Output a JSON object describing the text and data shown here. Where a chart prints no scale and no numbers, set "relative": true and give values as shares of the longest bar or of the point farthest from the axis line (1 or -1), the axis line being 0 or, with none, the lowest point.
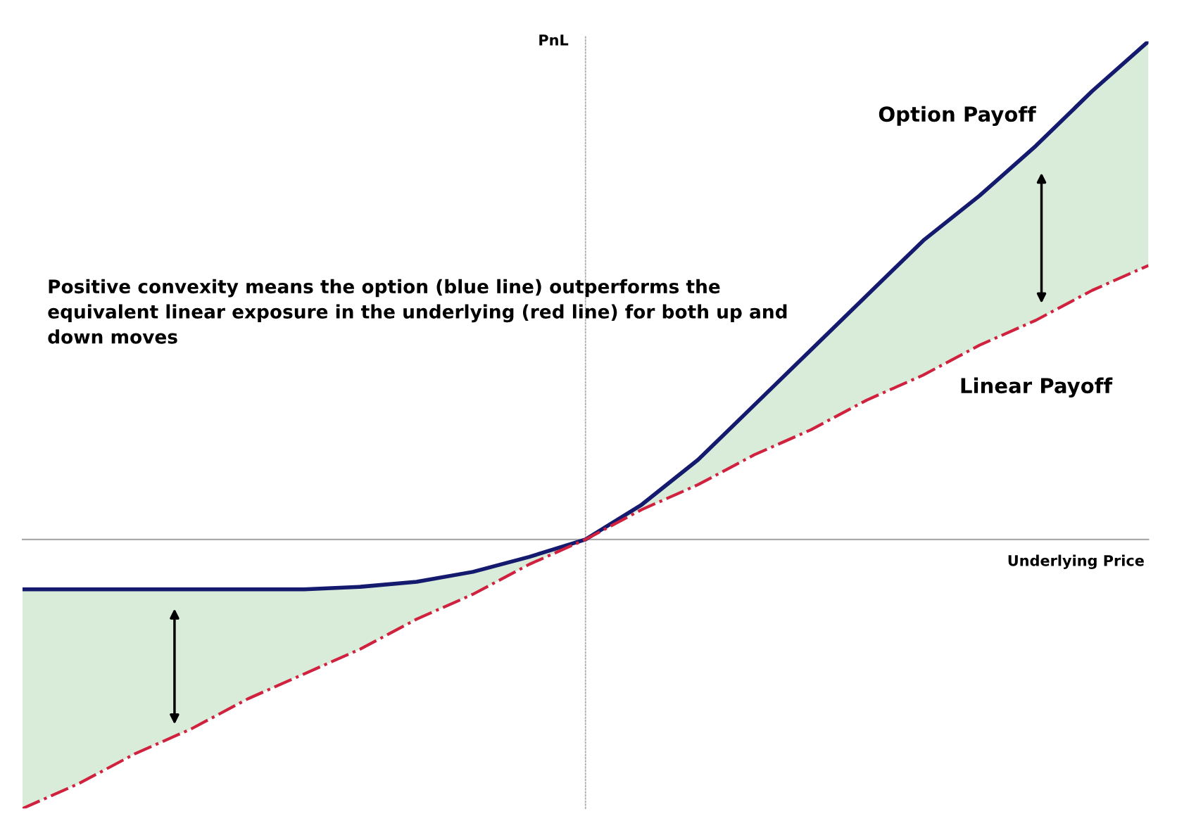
{
  "chart_data": {
    "type": "line",
    "relative": true,
    "xlabel": "Underlying Price",
    "ylabel": "PnL",
    "categories": [
      null,
      null,
      null,
      null,
      null,
      null,
      null,
      null,
      null,
      null,
      null,
      null,
      null,
      null,
      null,
      null,
      null,
      null,
      null,
      null,
      null
    ],
    "series": [
      {
        "name": "Option Payoff",
        "color": "#141a6e",
        "line_style": "solid",
        "values": [
          -0.1,
          -0.1,
          -0.1,
          -0.1,
          -0.1,
          -0.1,
          -0.095,
          -0.085,
          -0.065,
          -0.035,
          0,
          0.07,
          0.16,
          0.27,
          0.38,
          0.49,
          0.6,
          0.69,
          0.79,
          0.9,
          1.0
        ],
        "lower": [
          -0.54,
          -0.49,
          -0.43,
          -0.38,
          -0.32,
          -0.27,
          -0.22,
          -0.16,
          -0.11,
          -0.05,
          0,
          0.06,
          0.11,
          0.17,
          0.22,
          0.28,
          0.33,
          0.39,
          0.44,
          0.5,
          0.55
        ],
        "upper": [
          -0.1,
          -0.1,
          -0.1,
          -0.1,
          -0.1,
          -0.1,
          -0.095,
          -0.085,
          -0.065,
          -0.035,
          0,
          0.07,
          0.16,
          0.27,
          0.38,
          0.49,
          0.6,
          0.69,
          0.79,
          0.9,
          1.0
        ]
      },
      {
        "name": "Linear Payoff",
        "color": "#d0213f",
        "line_style": "dashdot",
        "values": [
          -0.54,
          -0.49,
          -0.43,
          -0.38,
          -0.32,
          -0.27,
          -0.22,
          -0.16,
          -0.11,
          -0.05,
          0,
          0.06,
          0.11,
          0.17,
          0.22,
          0.28,
          0.33,
          0.39,
          0.44,
          0.5,
          0.55
        ]
      }
    ],
    "annotations": [
      "Positive convexity means the option (blue line) outperforms the equivalent linear exposure in the underlying (red line) for both up and down moves"
    ]
  }
}
